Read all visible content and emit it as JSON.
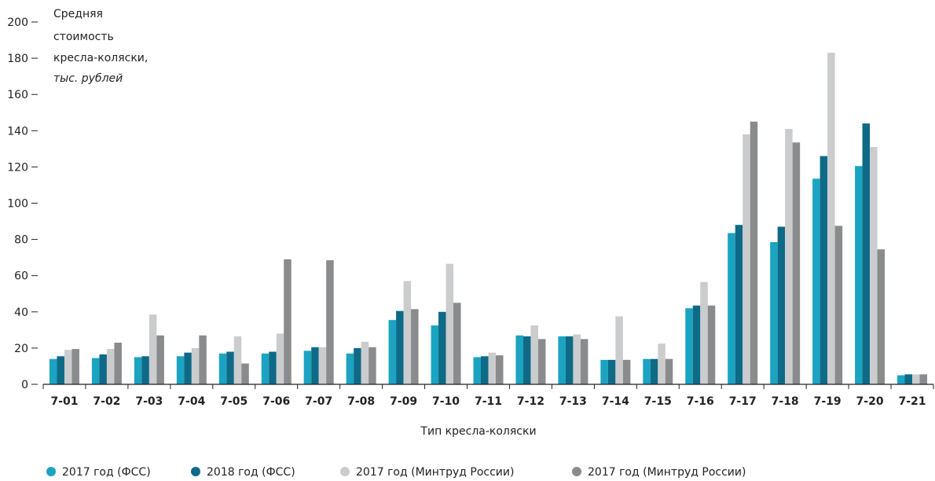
{
  "chart_data": {
    "type": "bar",
    "ylabel_lines": [
      "Средняя",
      "стоимость",
      "кресла-коляски,"
    ],
    "ylabel_unit": "тыс. рублей",
    "xlabel": "Тип кресла-коляски",
    "ylim": [
      0,
      200
    ],
    "yticks": [
      0,
      20,
      40,
      60,
      80,
      100,
      120,
      140,
      160,
      180,
      200
    ],
    "categories": [
      "7-01",
      "7-02",
      "7-03",
      "7-04",
      "7-05",
      "7-06",
      "7-07",
      "7-08",
      "7-09",
      "7-10",
      "7-11",
      "7-12",
      "7-13",
      "7-14",
      "7-15",
      "7-16",
      "7-17",
      "7-18",
      "7-19",
      "7-20",
      "7-21"
    ],
    "legend_position": "bottom",
    "series": [
      {
        "name": "2017 год (ФСС)",
        "color": "#1BA3C2",
        "values": [
          14,
          14.5,
          15,
          15.5,
          17,
          17,
          18.5,
          17,
          35.5,
          32.5,
          15,
          27,
          26.5,
          13.5,
          14,
          42,
          83.5,
          78.5,
          113.5,
          120.5,
          5
        ]
      },
      {
        "name": "2018 год (ФСС)",
        "color": "#0E6A86",
        "values": [
          15.5,
          16.5,
          15.5,
          17.5,
          18,
          18,
          20.5,
          20,
          40.5,
          40,
          15.5,
          26.5,
          26.5,
          13.5,
          14,
          43.5,
          88,
          87,
          126,
          144,
          5.5
        ]
      },
      {
        "name": "2017 год (Минтруд России)",
        "color": "#CBCCCE",
        "values": [
          19,
          19.5,
          38.5,
          20,
          26.5,
          28,
          20.5,
          23.5,
          57,
          66.5,
          17.5,
          32.5,
          27.5,
          37.5,
          22.5,
          56.5,
          138,
          141,
          183,
          131,
          5.5
        ]
      },
      {
        "name": "2017 год (Минтруд России)",
        "color": "#8A8B8D",
        "values": [
          19.5,
          23,
          27,
          27,
          11.5,
          69,
          68.5,
          20.5,
          41.5,
          45,
          16,
          25,
          25,
          13.5,
          14,
          43.5,
          145,
          133.5,
          87.5,
          74.5,
          5.5
        ]
      }
    ]
  }
}
